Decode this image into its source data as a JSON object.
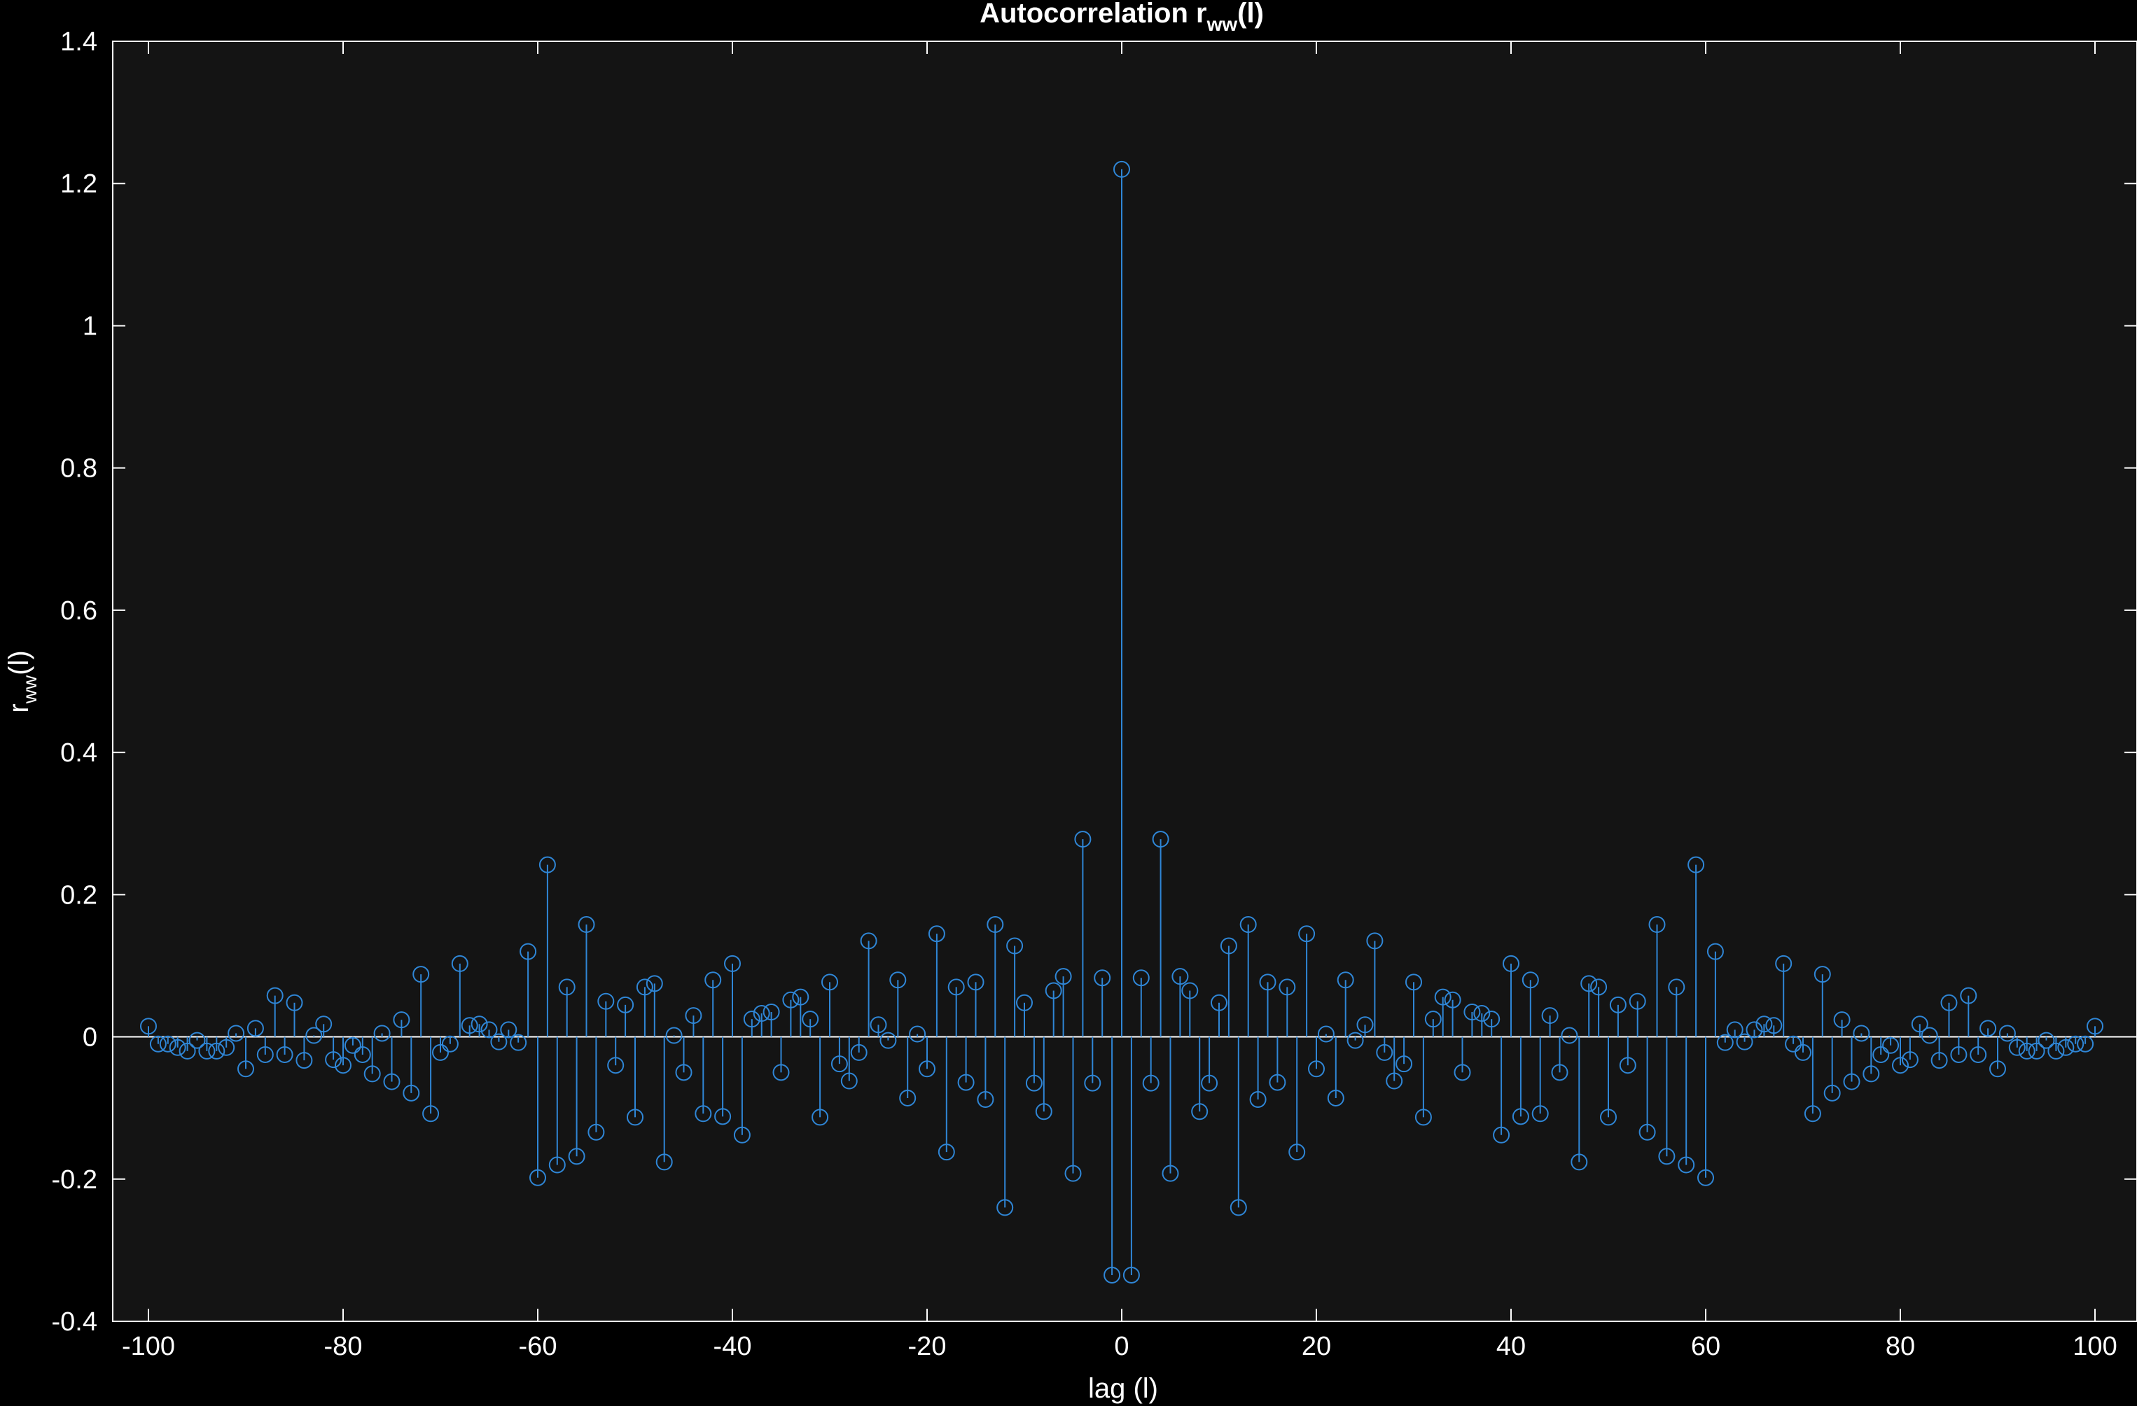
{
  "chart_data": {
    "type": "stem",
    "title_main": "Autocorrelation  r",
    "title_sub": "ww",
    "title_tail": "(l)",
    "xlabel": "lag (l)",
    "ylabel_main": "r",
    "ylabel_sub": "ww",
    "ylabel_tail": "(l)",
    "xlim": [
      -105,
      105
    ],
    "ylim": [
      -0.4,
      1.4
    ],
    "xticks": [
      -100,
      -80,
      -60,
      -40,
      -20,
      0,
      20,
      40,
      60,
      80,
      100
    ],
    "yticks": [
      -0.4,
      -0.2,
      0,
      0.2,
      0.4,
      0.6,
      0.8,
      1,
      1.2,
      1.4
    ],
    "ytick_labels": [
      "-0.4",
      "-0.2",
      "0",
      "0.2",
      "0.4",
      "0.6",
      "0.8",
      "1",
      "1.2",
      "1.4"
    ],
    "grid": false,
    "colors": {
      "figure_bg": "#000000",
      "axes_bg": "#141414",
      "axes_line": "#ffffff",
      "text": "#ffffff",
      "stem": "#2f86d6"
    },
    "x_start": -100,
    "values": [
      0.015,
      -0.01,
      -0.01,
      -0.015,
      -0.02,
      -0.005,
      -0.02,
      -0.02,
      -0.015,
      0.005,
      -0.045,
      0.012,
      -0.025,
      0.058,
      -0.025,
      0.048,
      -0.033,
      0.002,
      0.018,
      -0.032,
      -0.04,
      -0.012,
      -0.025,
      -0.052,
      0.005,
      -0.063,
      0.024,
      -0.079,
      0.088,
      -0.108,
      -0.022,
      -0.01,
      0.103,
      0.016,
      0.018,
      0.01,
      -0.007,
      0.01,
      -0.008,
      0.12,
      -0.198,
      0.242,
      -0.18,
      0.07,
      -0.168,
      0.158,
      -0.134,
      0.05,
      -0.04,
      0.045,
      -0.113,
      0.07,
      0.075,
      -0.176,
      0.002,
      -0.05,
      0.03,
      -0.108,
      0.08,
      -0.112,
      0.103,
      -0.138,
      0.025,
      0.033,
      0.035,
      -0.05,
      0.052,
      0.056,
      0.025,
      -0.113,
      0.077,
      -0.038,
      -0.062,
      -0.022,
      0.135,
      0.017,
      -0.005,
      0.08,
      -0.086,
      0.004,
      -0.045,
      0.145,
      -0.162,
      0.07,
      -0.064,
      0.077,
      -0.088,
      0.158,
      -0.24,
      0.128,
      0.048,
      -0.065,
      -0.105,
      0.065,
      0.085,
      -0.192,
      0.278,
      -0.065,
      0.083,
      -0.335,
      1.22,
      -0.335,
      0.083,
      -0.065,
      0.278,
      -0.192,
      0.085,
      0.065,
      -0.105,
      -0.065,
      0.048,
      0.128,
      -0.24,
      0.158,
      -0.088,
      0.077,
      -0.064,
      0.07,
      -0.162,
      0.145,
      -0.045,
      0.004,
      -0.086,
      0.08,
      -0.005,
      0.017,
      0.135,
      -0.022,
      -0.062,
      -0.038,
      0.077,
      -0.113,
      0.025,
      0.056,
      0.052,
      -0.05,
      0.035,
      0.033,
      0.025,
      -0.138,
      0.103,
      -0.112,
      0.08,
      -0.108,
      0.03,
      -0.05,
      0.002,
      -0.176,
      0.075,
      0.07,
      -0.113,
      0.045,
      -0.04,
      0.05,
      -0.134,
      0.158,
      -0.168,
      0.07,
      -0.18,
      0.242,
      -0.198,
      0.12,
      -0.008,
      0.01,
      -0.007,
      0.01,
      0.018,
      0.016,
      0.103,
      -0.01,
      -0.022,
      -0.108,
      0.088,
      -0.079,
      0.024,
      -0.063,
      0.005,
      -0.052,
      -0.025,
      -0.012,
      -0.04,
      -0.032,
      0.018,
      0.002,
      -0.033,
      0.048,
      -0.025,
      0.058,
      -0.025,
      0.012,
      -0.045,
      0.005,
      -0.015,
      -0.02,
      -0.02,
      -0.005,
      -0.02,
      -0.015,
      -0.01,
      -0.01,
      0.015
    ]
  }
}
